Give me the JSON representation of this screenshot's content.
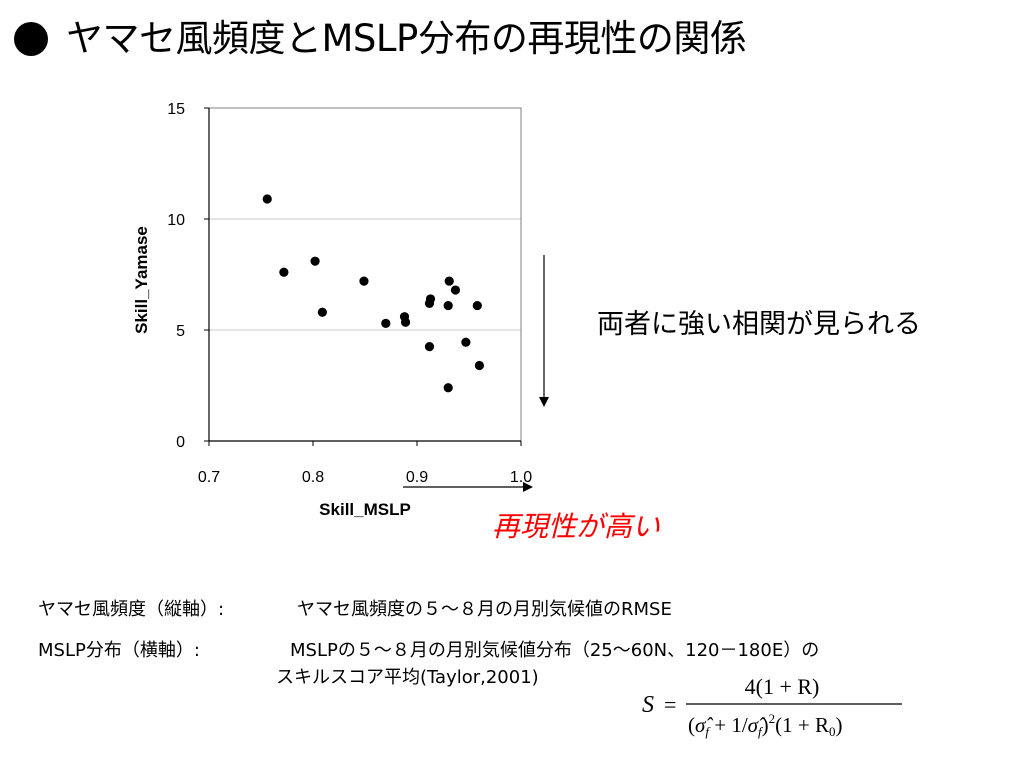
{
  "title": "ヤマセ風頻度とMSLP分布の再現性の関係",
  "annotations": {
    "correlation": "両者に強い相関が見られる",
    "direction": "再現性が高い"
  },
  "definitions": {
    "yamase_label": "ヤマセ風頻度（縦軸）:",
    "yamase_text": "ヤマセ風頻度の５～８月の月別気候値のRMSE",
    "mslp_label": "MSLP分布（横軸）:",
    "mslp_text": "MSLPの５～８月の月別気候値分布（25～60N、120－180E）の",
    "mslp_text2": "スキルスコア平均(Taylor,2001)"
  },
  "formula": {
    "lhs": "S",
    "eq": "=",
    "numerator": "4(1 + R)",
    "den_open": "(",
    "den_sigma1": "σ̂",
    "den_sub1": "f",
    "den_mid": " + 1/",
    "den_sigma2": "σ̂",
    "den_sub2": "f",
    "den_close": ")",
    "den_exp": "2",
    "den_tail": "(1 + R",
    "den_sub3": "0",
    "den_end": ")"
  },
  "chart_data": {
    "type": "scatter",
    "xlabel": "Skill_MSLP",
    "ylabel": "Skill_Yamase",
    "xlim": [
      0.7,
      1.0
    ],
    "ylim": [
      0,
      15
    ],
    "xticks": [
      "0.7",
      "0.8",
      "0.9",
      "1.0"
    ],
    "yticks": [
      "0",
      "5",
      "10",
      "15"
    ],
    "grid": "horizontal",
    "points": [
      {
        "x": 0.756,
        "y": 10.9
      },
      {
        "x": 0.772,
        "y": 7.6
      },
      {
        "x": 0.802,
        "y": 8.1
      },
      {
        "x": 0.809,
        "y": 5.8
      },
      {
        "x": 0.849,
        "y": 7.2
      },
      {
        "x": 0.87,
        "y": 5.3
      },
      {
        "x": 0.888,
        "y": 5.6
      },
      {
        "x": 0.889,
        "y": 5.35
      },
      {
        "x": 0.913,
        "y": 6.4
      },
      {
        "x": 0.912,
        "y": 6.2
      },
      {
        "x": 0.912,
        "y": 4.25
      },
      {
        "x": 0.93,
        "y": 6.1
      },
      {
        "x": 0.931,
        "y": 7.2
      },
      {
        "x": 0.937,
        "y": 6.8
      },
      {
        "x": 0.93,
        "y": 2.4
      },
      {
        "x": 0.947,
        "y": 4.45
      },
      {
        "x": 0.958,
        "y": 6.1
      },
      {
        "x": 0.96,
        "y": 3.4
      }
    ]
  }
}
